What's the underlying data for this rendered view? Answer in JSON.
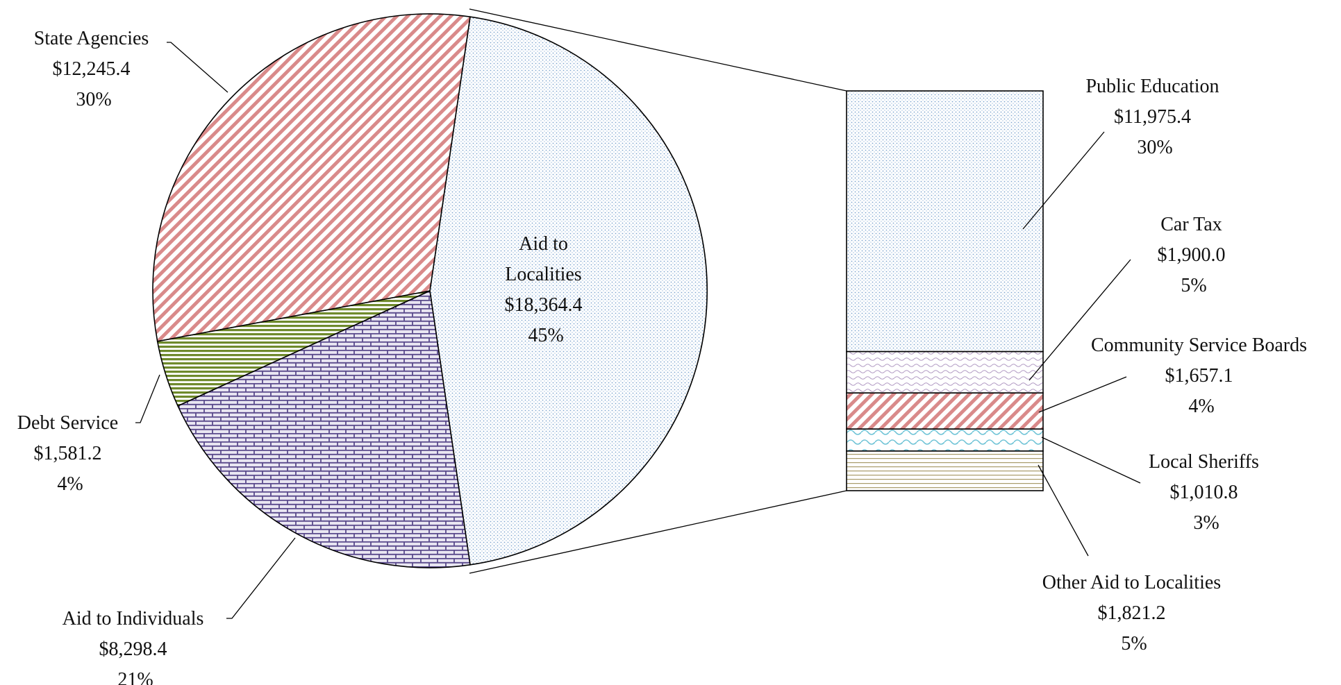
{
  "chart_data": {
    "type": "pie",
    "subtype": "bar-of-pie",
    "title": "",
    "pie": [
      {
        "key": "aid_localities",
        "label": [
          "Aid to",
          "Localities"
        ],
        "amount": "$18,364.4",
        "pct": "45%",
        "value": 18364.4,
        "pattern": "dots-blue"
      },
      {
        "key": "aid_individuals",
        "label": [
          "Aid to Individuals"
        ],
        "amount": "$8,298.4",
        "pct": "21%",
        "value": 8298.4,
        "pattern": "brick-purple"
      },
      {
        "key": "debt_service",
        "label": [
          "Debt Service"
        ],
        "amount": "$1,581.2",
        "pct": "4%",
        "value": 1581.2,
        "pattern": "hstripes-green"
      },
      {
        "key": "state_agencies",
        "label": [
          "State Agencies"
        ],
        "amount": "$12,245.4",
        "pct": "30%",
        "value": 12245.4,
        "pattern": "diag-red"
      }
    ],
    "bar": [
      {
        "key": "public_education",
        "label": "Public Education",
        "amount": "$11,975.4",
        "pct": "30%",
        "value": 11975.4,
        "pattern": "dots-blue"
      },
      {
        "key": "car_tax",
        "label": "Car Tax",
        "amount": "$1,900.0",
        "pct": "5%",
        "value": 1900.0,
        "pattern": "wave-purple"
      },
      {
        "key": "community_service_boards",
        "label": "Community Service Boards",
        "amount": "$1,657.1",
        "pct": "4%",
        "value": 1657.1,
        "pattern": "diag-red"
      },
      {
        "key": "local_sheriffs",
        "label": "Local Sheriffs",
        "amount": "$1,010.8",
        "pct": "3%",
        "value": 1010.8,
        "pattern": "wave-cyan"
      },
      {
        "key": "other_aid_localities",
        "label": "Other Aid to Localities",
        "amount": "$1,821.2",
        "pct": "5%",
        "value": 1821.2,
        "pattern": "hstripes-olive"
      }
    ],
    "colors": {
      "blue": "#7fa6cf",
      "purple": "#5a4a8c",
      "green": "#6f8a2c",
      "red": "#d98a8a",
      "cyan": "#6ec3d6",
      "olive": "#a89b6a"
    }
  }
}
